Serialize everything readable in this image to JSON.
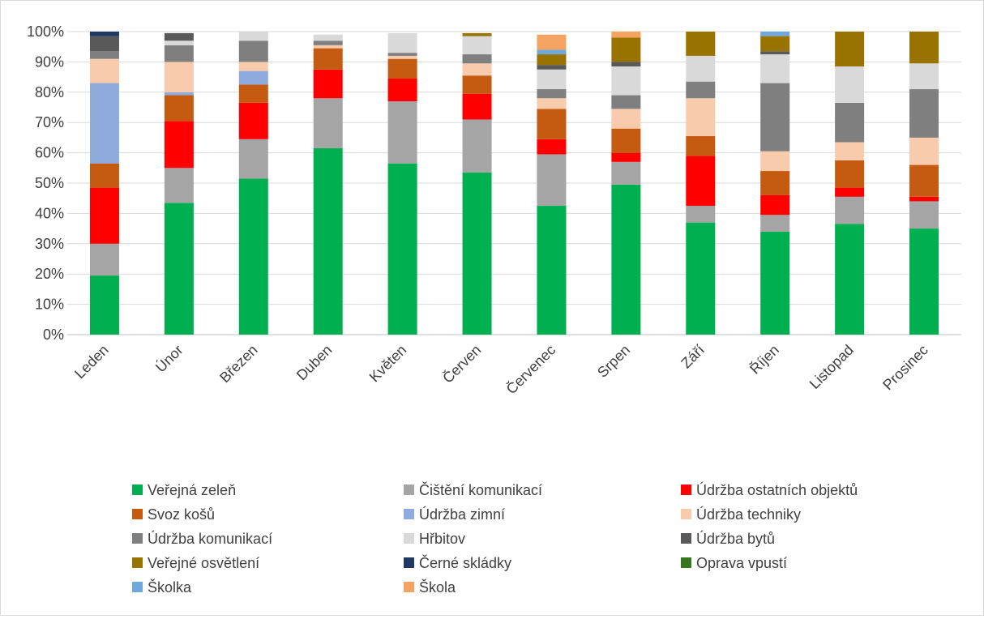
{
  "chart_data": {
    "type": "bar",
    "stacked": true,
    "percent": true,
    "title": "",
    "xlabel": "",
    "ylabel": "",
    "ylim": [
      0,
      100
    ],
    "yticks": [
      "0%",
      "10%",
      "20%",
      "30%",
      "40%",
      "50%",
      "60%",
      "70%",
      "80%",
      "90%",
      "100%"
    ],
    "grid": true,
    "legend_position": "bottom",
    "categories": [
      "Leden",
      "Únor",
      "Březen",
      "Duben",
      "Květen",
      "Červen",
      "Červenec",
      "Srpen",
      "Září",
      "Říjen",
      "Listopad",
      "Prosinec"
    ],
    "series": [
      {
        "name": "Veřejná zeleň",
        "color": "#00b050",
        "values": [
          19.5,
          43.5,
          51.5,
          61.5,
          56.5,
          53.5,
          42.5,
          49.5,
          37,
          34,
          36.5,
          35
        ]
      },
      {
        "name": "Čištění komunikací",
        "color": "#a5a5a5",
        "values": [
          10.5,
          11.5,
          13,
          16.5,
          20.5,
          17.5,
          17,
          7.5,
          5.5,
          5.5,
          9,
          9
        ]
      },
      {
        "name": "Údržba ostatních objektů",
        "color": "#ff0000",
        "values": [
          18.5,
          15.5,
          12,
          9.5,
          7.5,
          8.5,
          5,
          3,
          16.5,
          6.5,
          3,
          1.5
        ]
      },
      {
        "name": "Svoz košů",
        "color": "#c55a11",
        "values": [
          8,
          8.5,
          6,
          7,
          6.5,
          6,
          10,
          8,
          6.5,
          8,
          9,
          10.5
        ]
      },
      {
        "name": "Údržba zimní",
        "color": "#8faadc",
        "values": [
          26.5,
          1,
          4.5,
          0,
          0,
          0,
          0,
          0,
          0,
          0,
          0,
          0
        ]
      },
      {
        "name": "Údržba techniky",
        "color": "#f8cbad",
        "values": [
          8,
          10,
          3,
          1,
          1,
          4,
          3.5,
          6.5,
          12.5,
          6.5,
          6,
          9
        ]
      },
      {
        "name": "Údržba komunikací",
        "color": "#7f7f7f",
        "values": [
          2.5,
          5.5,
          7,
          1.5,
          1,
          3,
          3,
          4.5,
          5.5,
          22.5,
          13,
          16
        ]
      },
      {
        "name": "Hřbitov",
        "color": "#d9d9d9",
        "values": [
          0,
          1.5,
          3,
          2,
          6.5,
          6,
          6.5,
          9.5,
          8.5,
          9.5,
          12,
          8.5
        ]
      },
      {
        "name": "Údržba bytů",
        "color": "#595959",
        "values": [
          5,
          2.5,
          0,
          0,
          0,
          0,
          1.5,
          1.5,
          0,
          1,
          0,
          0
        ]
      },
      {
        "name": "Veřejné osvětlení",
        "color": "#997300",
        "values": [
          0,
          0,
          0,
          0,
          0,
          1,
          3.5,
          8,
          8,
          5,
          11.5,
          10.5
        ]
      },
      {
        "name": "Černé skládky",
        "color": "#1f3864",
        "values": [
          1.5,
          0,
          0,
          0,
          0,
          0,
          0,
          0,
          0,
          0,
          0,
          0
        ]
      },
      {
        "name": "Oprava vpustí",
        "color": "#38761d",
        "values": [
          0,
          0,
          0,
          0,
          0,
          0,
          0,
          0,
          0,
          0,
          0,
          0
        ]
      },
      {
        "name": "Školka",
        "color": "#6fa8dc",
        "values": [
          0,
          0,
          0,
          0,
          0,
          0,
          1.5,
          0,
          0,
          1.5,
          0,
          0
        ]
      },
      {
        "name": "Škola",
        "color": "#f4a460",
        "values": [
          0,
          0,
          0,
          0,
          0,
          0,
          5,
          2,
          0,
          0,
          0,
          0
        ]
      }
    ]
  }
}
